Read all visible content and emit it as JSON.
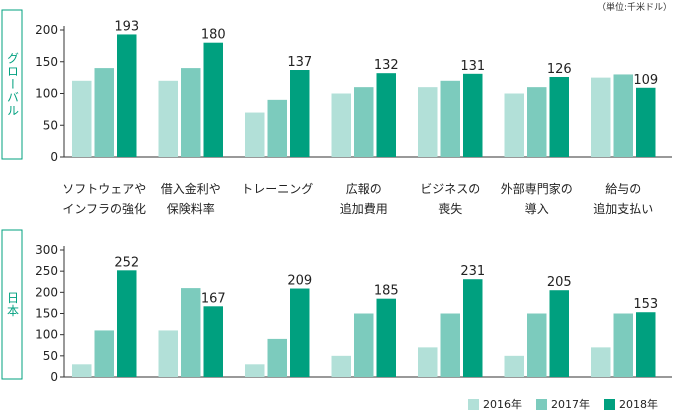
{
  "unit_label": "（単位:千米ドル）",
  "colors": {
    "y2016": "#b2e0d8",
    "y2017": "#7ccbbd",
    "y2018": "#00a07f",
    "panel_label": "#00a07f"
  },
  "legend": [
    {
      "label": "2016年",
      "color": "#b2e0d8"
    },
    {
      "label": "2017年",
      "color": "#7ccbbd"
    },
    {
      "label": "2018年",
      "color": "#00a07f"
    }
  ],
  "chart_data": [
    {
      "type": "bar",
      "panel_label": "グローバル",
      "categories": [
        [
          "ソフトウェアや",
          "インフラの強化"
        ],
        [
          "借入金利や",
          "保険料率"
        ],
        [
          "トレーニング"
        ],
        [
          "広報の",
          "追加費用"
        ],
        [
          "ビジネスの",
          "喪失"
        ],
        [
          "外部専門家の",
          "導入"
        ],
        [
          "給与の",
          "追加支払い"
        ]
      ],
      "series": [
        {
          "name": "2016年",
          "values": [
            120,
            120,
            70,
            100,
            110,
            100,
            125
          ]
        },
        {
          "name": "2017年",
          "values": [
            140,
            140,
            90,
            110,
            120,
            110,
            130
          ]
        },
        {
          "name": "2018年",
          "values": [
            193,
            180,
            137,
            132,
            131,
            126,
            109
          ]
        }
      ],
      "data_labels": [
        "193",
        "180",
        "137",
        "132",
        "131",
        "126",
        "109"
      ],
      "ylim": [
        0,
        200
      ],
      "yticks": [
        0,
        50,
        100,
        150,
        200
      ]
    },
    {
      "type": "bar",
      "panel_label": "日本",
      "categories": [
        [
          "ソフトウェアや",
          "インフラの強化"
        ],
        [
          "借入金利や",
          "保険料率"
        ],
        [
          "トレーニング"
        ],
        [
          "広報の",
          "追加費用"
        ],
        [
          "ビジネスの",
          "喪失"
        ],
        [
          "外部専門家の",
          "導入"
        ],
        [
          "給与の",
          "追加支払い"
        ]
      ],
      "series": [
        {
          "name": "2016年",
          "values": [
            30,
            110,
            30,
            50,
            70,
            50,
            70
          ]
        },
        {
          "name": "2017年",
          "values": [
            110,
            210,
            90,
            150,
            150,
            150,
            150
          ]
        },
        {
          "name": "2018年",
          "values": [
            252,
            167,
            209,
            185,
            231,
            205,
            153
          ]
        }
      ],
      "data_labels": [
        "252",
        "167",
        "209",
        "185",
        "231",
        "205",
        "153"
      ],
      "ylim": [
        0,
        300
      ],
      "yticks": [
        0,
        50,
        100,
        150,
        200,
        250,
        300
      ]
    }
  ]
}
